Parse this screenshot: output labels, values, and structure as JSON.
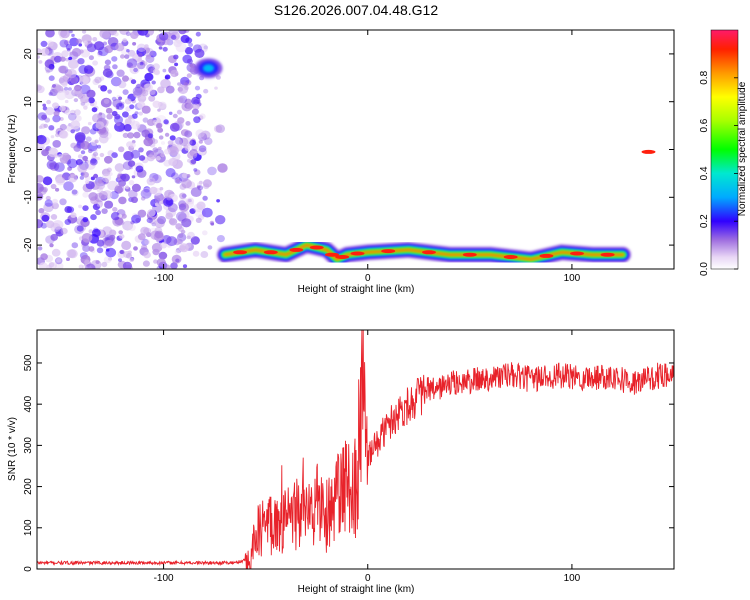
{
  "figure": {
    "title": "S126.2026.007.04.48.G12"
  },
  "chart_data": [
    {
      "type": "heatmap",
      "xlabel": "Height of straight line (km)",
      "ylabel": "Frequency (Hz)",
      "xlim": [
        -162,
        150
      ],
      "ylim": [
        -25,
        25
      ],
      "xticks": [
        -100,
        0,
        100
      ],
      "yticks": [
        -20,
        -10,
        0,
        10,
        20
      ],
      "colorbar": {
        "label": "Normalized spectral amplitude",
        "range": [
          0,
          1
        ],
        "ticks": [
          0.0,
          0.2,
          0.4,
          0.6,
          0.8
        ],
        "tick_labels": [
          "0.0",
          "0.2",
          "0.4",
          "0.6",
          "0.8"
        ],
        "colormap": "rainbow"
      },
      "features": [
        {
          "kind": "noise-cloud",
          "x_range": [
            -162,
            -70
          ],
          "y_range": [
            -25,
            25
          ],
          "amplitude": 0.1
        },
        {
          "kind": "track",
          "points": [
            [
              -70,
              -22
            ],
            [
              -55,
              -21
            ],
            [
              -40,
              -22
            ],
            [
              -30,
              -20
            ],
            [
              -20,
              -21
            ],
            [
              -15,
              -23
            ],
            [
              -10,
              -22
            ],
            [
              0,
              -21.5
            ],
            [
              20,
              -21
            ],
            [
              40,
              -22
            ],
            [
              60,
              -22
            ],
            [
              80,
              -23
            ],
            [
              95,
              -21.5
            ],
            [
              110,
              -22
            ],
            [
              125,
              -22
            ]
          ],
          "amplitude": 0.9
        },
        {
          "kind": "track",
          "points": [
            [
              128,
              -0.5
            ],
            [
              147,
              -0.5
            ]
          ],
          "amplitude": 0.95
        },
        {
          "kind": "blob",
          "x": -78,
          "y": 17,
          "amplitude": 0.3
        }
      ]
    },
    {
      "type": "line",
      "xlabel": "Height of straight line (km)",
      "ylabel": "SNR (10 * v/v)",
      "xlim": [
        -162,
        150
      ],
      "ylim": [
        0,
        580
      ],
      "xticks": [
        -100,
        0,
        100
      ],
      "yticks": [
        0,
        100,
        200,
        300,
        400,
        500
      ],
      "color": "#e8222a",
      "series": [
        {
          "x": [
            -162,
            -140,
            -120,
            -100,
            -80,
            -65,
            -58,
            -55,
            -50,
            -45,
            -40,
            -35,
            -30,
            -25,
            -20,
            -15,
            -10,
            -5,
            -3,
            0,
            5,
            10,
            15,
            20,
            25,
            30,
            40,
            50,
            60,
            70,
            80,
            90,
            100,
            110,
            120,
            130,
            140,
            150
          ],
          "y": [
            15,
            15,
            15,
            15,
            15,
            15,
            25,
            80,
            110,
            120,
            110,
            140,
            130,
            160,
            130,
            170,
            200,
            200,
            560,
            270,
            310,
            350,
            380,
            400,
            420,
            430,
            450,
            455,
            465,
            470,
            460,
            470,
            465,
            465,
            470,
            450,
            465,
            480
          ]
        }
      ]
    }
  ]
}
